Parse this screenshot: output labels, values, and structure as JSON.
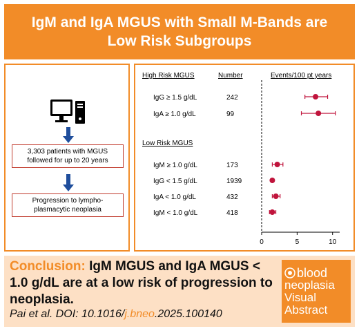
{
  "title": {
    "line1": "IgM and IgA MGUS with Small M-Bands are",
    "line2": "Low Risk Subgroups"
  },
  "flow": {
    "step1": "3,303 patients with MGUS followed for up to 20 years",
    "step2": "Progression to lympho-plasmacytic neoplasia",
    "computer_icon": "computer-icon"
  },
  "chart_data": {
    "type": "forest",
    "column_headers": {
      "high_risk": "High Risk MGUS",
      "number": "Number",
      "events": "Events/100 pt years"
    },
    "low_risk_header": "Low Risk MGUS",
    "groups": [
      {
        "name": "High Risk MGUS",
        "rows": [
          {
            "label": "IgG ≥ 1.5 g/dL",
            "number": "242",
            "value": 7.6,
            "ci": [
              6.1,
              9.3
            ]
          },
          {
            "label": "IgA ≥ 1.0 g/dL",
            "number": "99",
            "value": 8.0,
            "ci": [
              5.6,
              10.4
            ]
          }
        ]
      },
      {
        "name": "Low Risk MGUS",
        "rows": [
          {
            "label": "IgM ≥ 1.0 g/dL",
            "number": "173",
            "value": 2.2,
            "ci": [
              1.5,
              3.0
            ]
          },
          {
            "label": "IgG < 1.5 g/dL",
            "number": "1939",
            "value": 1.5,
            "ci": [
              1.3,
              1.7
            ]
          },
          {
            "label": "IgA < 1.0 g/dL",
            "number": "432",
            "value": 2.0,
            "ci": [
              1.5,
              2.6
            ]
          },
          {
            "label": "IgM < 1.0 g/dL",
            "number": "418",
            "value": 1.5,
            "ci": [
              1.1,
              2.0
            ]
          }
        ]
      }
    ],
    "x_ticks": [
      0,
      5,
      10
    ],
    "xlim": [
      0,
      11
    ],
    "reference_line": 0,
    "point_color": "#c0143c"
  },
  "conclusion": {
    "label": "Conclusion:",
    "text": "IgM MGUS and IgA MGUS < 1.0 g/dL are at a low risk of progression to neoplasia."
  },
  "citation": {
    "prefix": "Pai et al. DOI: 10.1016/",
    "highlight": "j.bneo",
    "suffix": ".2025.100140"
  },
  "logo": {
    "line1": "blood",
    "line2": "neoplasia",
    "line3": "Visual",
    "line4": "Abstract"
  },
  "colors": {
    "accent": "#f28c28",
    "conclusion_bg": "#fde0c5",
    "arrow": "#1f4e9c",
    "box_border": "#c0392b",
    "marker": "#c0143c"
  }
}
